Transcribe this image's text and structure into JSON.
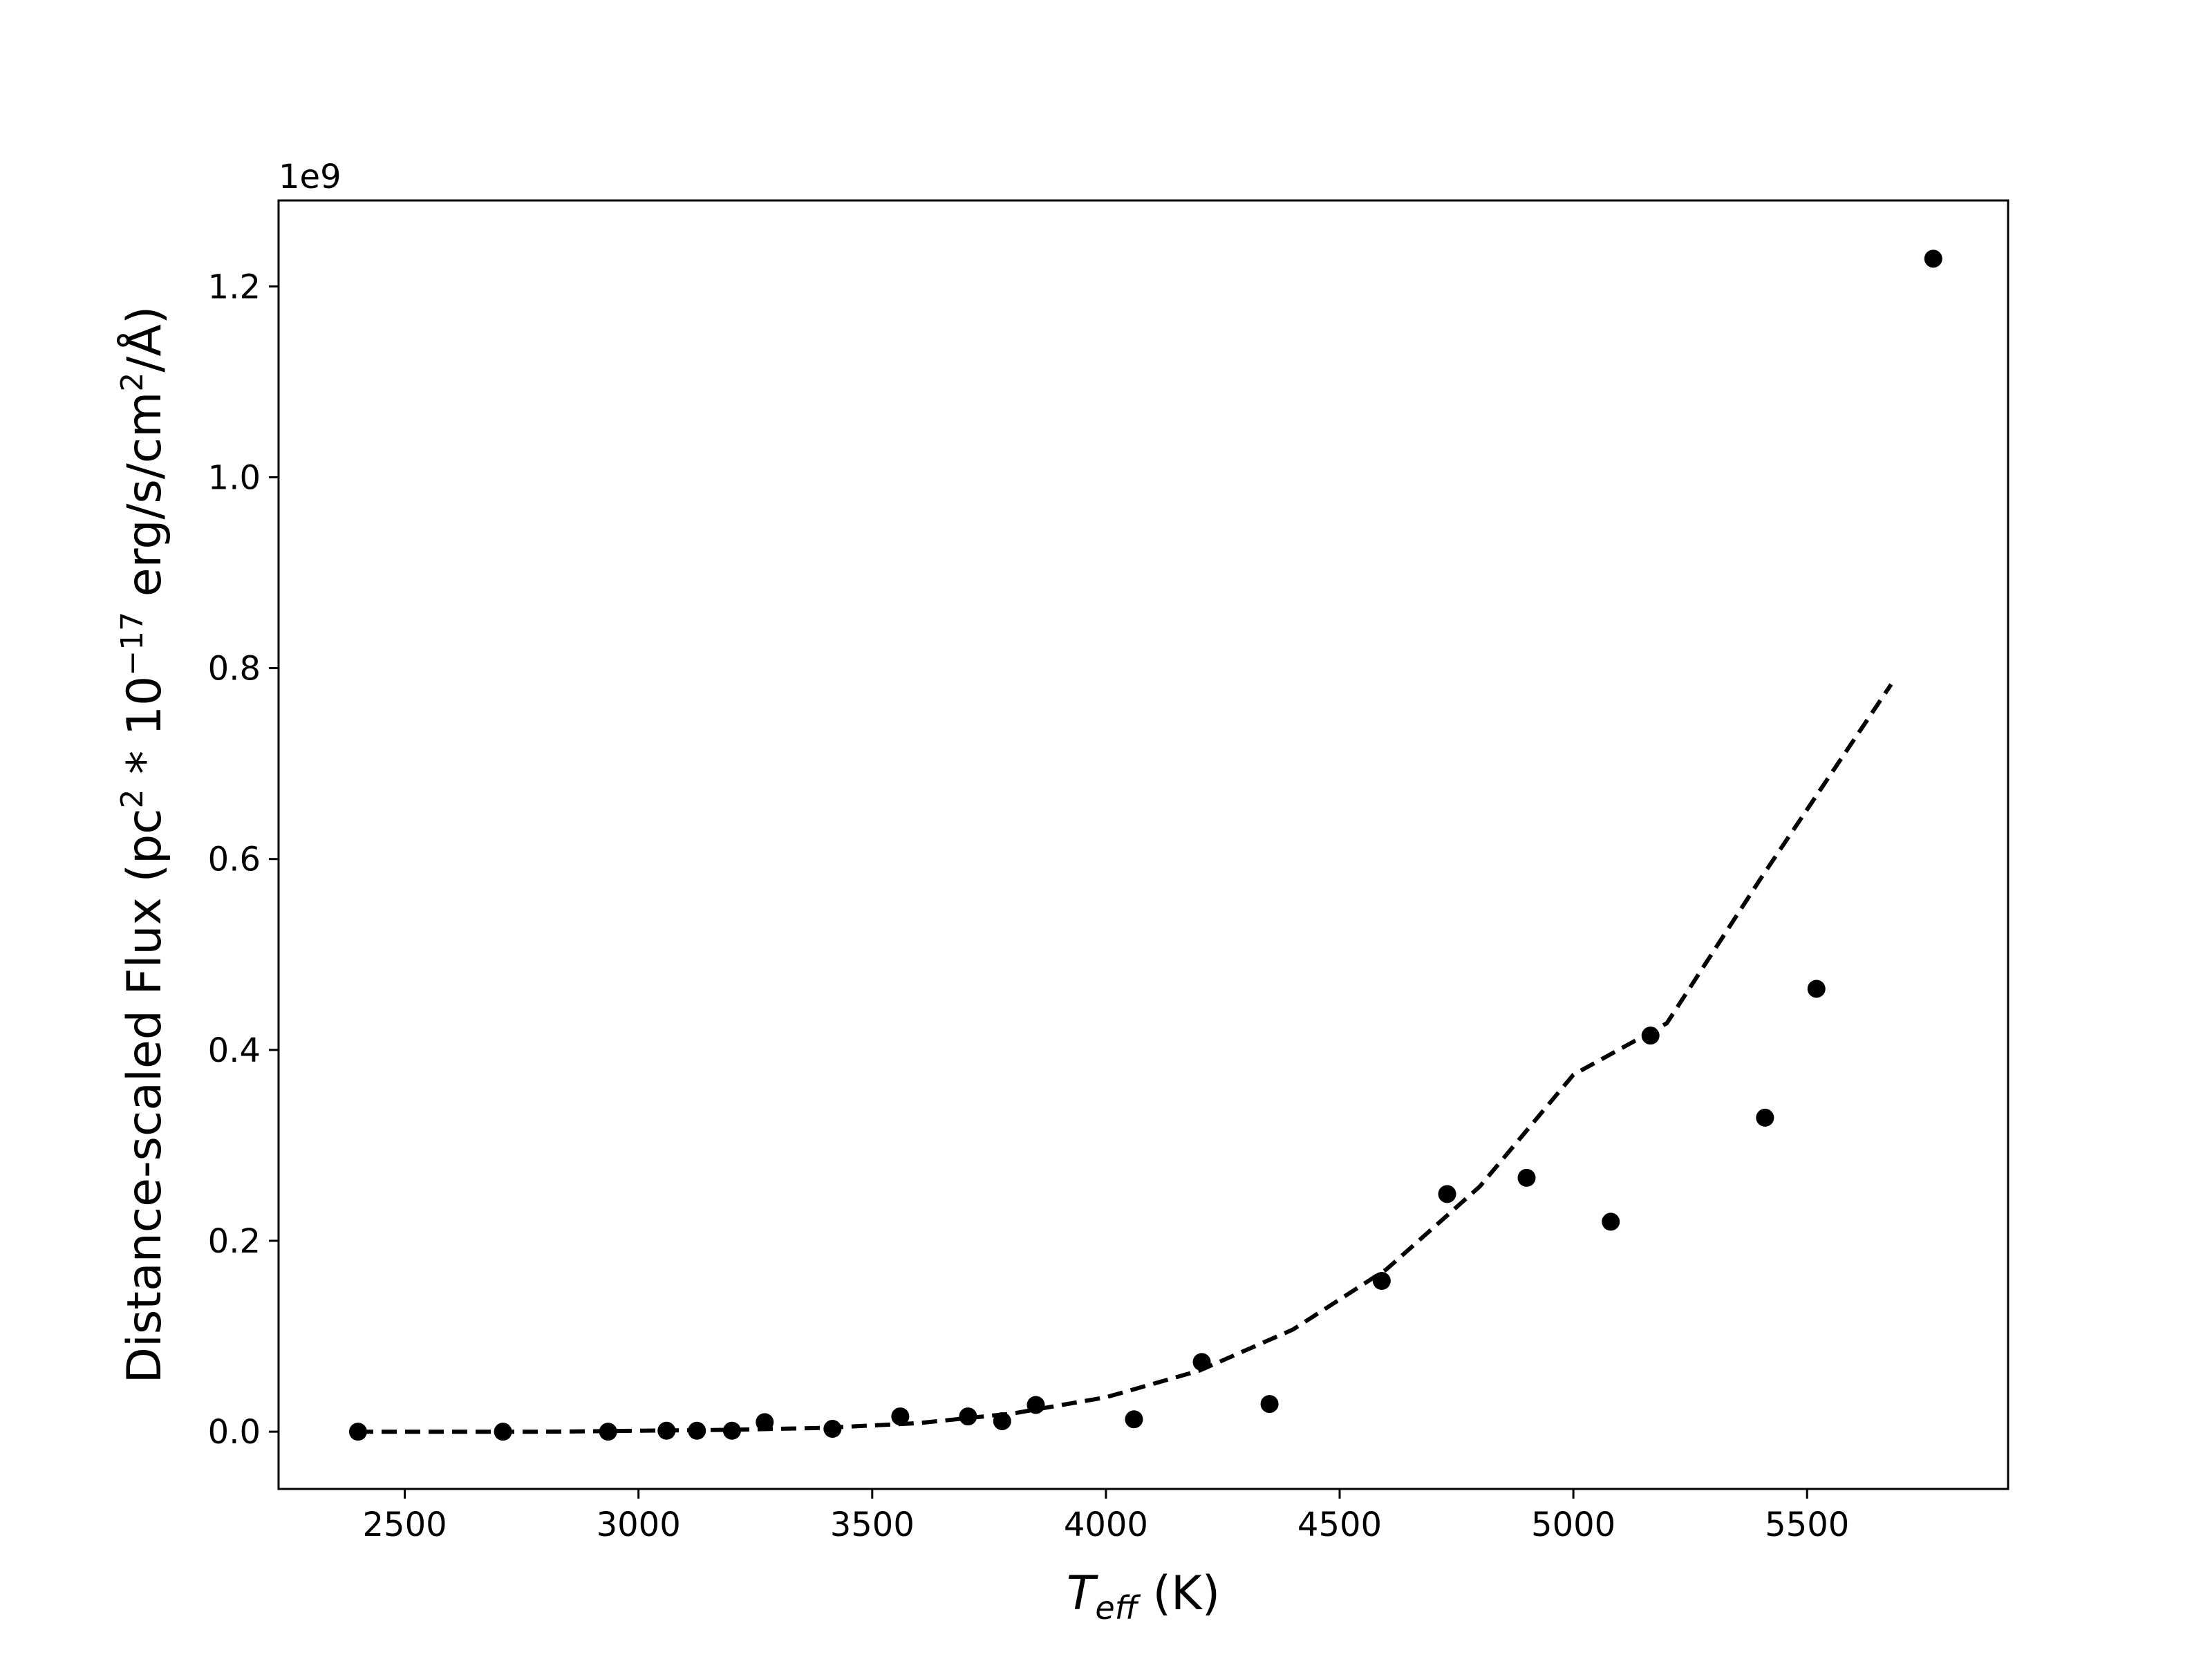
{
  "chart_data": {
    "type": "scatter",
    "title": "",
    "xlabel": {
      "main": "T",
      "sub": "eff",
      "unit": " (K)"
    },
    "ylabel": {
      "pre": "Distance-scaled Flux (pc",
      "sup1": "2",
      "mid": " * 10",
      "sup2": "−17",
      "mid2": " erg/s/cm",
      "sup3": "2",
      "post": "/Å)"
    },
    "y_offset_text": "1e9",
    "y_multiplier": 1000000000,
    "xlim": [
      2230,
      5930
    ],
    "ylim": [
      -0.06,
      1.29
    ],
    "xticks": [
      2500,
      3000,
      3500,
      4000,
      4500,
      5000,
      5500
    ],
    "xtick_labels": [
      "2500",
      "3000",
      "3500",
      "4000",
      "4500",
      "5000",
      "5500"
    ],
    "yticks": [
      0.0,
      0.2,
      0.4,
      0.6,
      0.8,
      1.0,
      1.2
    ],
    "ytick_labels": [
      "0.0",
      "0.2",
      "0.4",
      "0.6",
      "0.8",
      "1.0",
      "1.2"
    ],
    "grid": false,
    "legend": "none",
    "marker_color": "#000000",
    "series": [
      {
        "style": "markers",
        "x": [
          2400,
          2710,
          2935,
          3060,
          3125,
          3200,
          3270,
          3415,
          3560,
          3705,
          3778,
          3850,
          4060,
          4205,
          4350,
          4590,
          4730,
          4900,
          5080,
          5165,
          5410,
          5520,
          5770
        ],
        "y": [
          0.0,
          0.0,
          0.0,
          0.001,
          0.001,
          0.001,
          0.01,
          0.003,
          0.016,
          0.016,
          0.011,
          0.028,
          0.013,
          0.073,
          0.029,
          0.158,
          0.249,
          0.266,
          0.22,
          0.415,
          0.329,
          0.464,
          1.229
        ]
      },
      {
        "style": "dashed-line",
        "x": [
          2400,
          2600,
          2800,
          3000,
          3200,
          3400,
          3600,
          3800,
          4000,
          4200,
          4400,
          4600,
          4800,
          5000,
          5200,
          5400,
          5680
        ],
        "y": [
          0.0,
          0.0,
          0.0,
          0.001,
          0.002,
          0.004,
          0.009,
          0.019,
          0.036,
          0.064,
          0.107,
          0.17,
          0.257,
          0.374,
          0.428,
          0.579,
          0.783
        ]
      }
    ]
  }
}
